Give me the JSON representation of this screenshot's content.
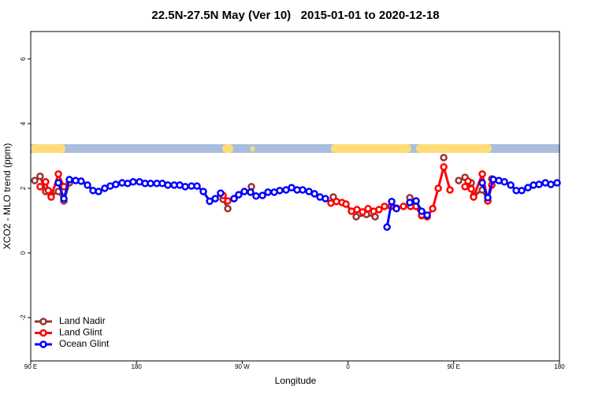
{
  "chart_data": {
    "type": "line",
    "title": "22.5N-27.5N May (Ver 10)   2015-01-01 to 2020-12-18",
    "x_label": "Longitude",
    "y_label": "XCO2 - MLO trend (ppm)",
    "xlim": [
      90,
      540
    ],
    "ylim": [
      -3.34,
      6.85
    ],
    "xticks": [
      {
        "value": 90,
        "label": "90 E"
      },
      {
        "value": 180,
        "label": "180"
      },
      {
        "value": 270,
        "label": "90 W"
      },
      {
        "value": 360,
        "label": "0"
      },
      {
        "value": 450,
        "label": "90 E"
      },
      {
        "value": 540,
        "label": "180"
      }
    ],
    "yticks": [
      -2,
      0,
      2,
      4,
      6
    ],
    "legend": "bottom-left",
    "series": [
      {
        "name": "Land Nadir",
        "color": "#993333",
        "x": [
          93.4,
          98,
          102.7,
          107.4,
          113.5,
          118.2,
          122.9,
          null,
          253.7,
          257.7,
          null,
          277.8,
          null,
          347.5,
          null,
          367,
          375.7,
          383.1,
          null,
          412.6,
          422.7,
          null,
          441.5,
          null,
          454.2,
          459.6,
          464.9,
          466.9,
          474.3,
          479,
          482.4
        ],
        "values": [
          2.24,
          2.37,
          1.9,
          1.78,
          1.9,
          1.61,
          2.17,
          null,
          1.66,
          1.37,
          null,
          2.05,
          null,
          1.73,
          null,
          1.12,
          1.19,
          1.12,
          null,
          1.71,
          1.15,
          null,
          2.95,
          null,
          2.24,
          2.34,
          2.17,
          1.76,
          1.95,
          1.61,
          2.29
        ]
      },
      {
        "name": "Land Glint",
        "color": "#ff0000",
        "x": [
          98,
          102.7,
          105,
          107.4,
          113.5,
          118.2,
          null,
          253.7,
          257.7,
          263,
          null,
          345.5,
          350.2,
          354.9,
          358.3,
          363,
          367.7,
          372.4,
          377.1,
          381.8,
          386.4,
          391.1,
          396.5,
          401.2,
          407.2,
          413.3,
          418,
          422.7,
          427.4,
          432.1,
          436.8,
          441.5,
          446.8,
          null,
          459.6,
          462.2,
          464.9,
          466.9,
          474.3,
          479,
          482.4
        ],
        "values": [
          2.05,
          2.2,
          1.93,
          1.73,
          2.44,
          2.05,
          null,
          1.78,
          1.61,
          1.68,
          null,
          1.54,
          1.59,
          1.56,
          1.51,
          1.29,
          1.34,
          1.27,
          1.37,
          1.29,
          1.34,
          1.44,
          1.44,
          1.39,
          1.44,
          1.44,
          1.44,
          1.17,
          1.12,
          1.37,
          2.0,
          2.66,
          1.95,
          null,
          2.05,
          2.22,
          1.98,
          1.73,
          2.44,
          1.61,
          2.1
        ]
      },
      {
        "name": "Ocean Glint",
        "color": "#0000ff",
        "x": [
          113.5,
          118.2,
          122.9,
          128.2,
          132.9,
          138.3,
          143,
          147.7,
          153,
          157.7,
          162.4,
          167.8,
          172.5,
          177.2,
          182.6,
          187.3,
          192,
          197.3,
          202,
          206.7,
          212.1,
          216.8,
          221.5,
          226.8,
          231.5,
          236.9,
          242.3,
          247,
          251.6,
          null,
          263,
          267,
          271.8,
          277.1,
          281.8,
          287.2,
          291.9,
          297.2,
          301.9,
          307.3,
          312,
          316.7,
          321.4,
          326.8,
          331.5,
          336.2,
          340.8,
          null,
          393.2,
          397.2,
          401.2,
          null,
          412.6,
          418,
          422.7,
          427.4,
          null,
          474.3,
          479,
          483.7,
          488.4,
          493.1,
          498.5,
          503.2,
          507.9,
          513.2,
          517.9,
          522.6,
          528,
          532.7,
          538
        ],
        "values": [
          2.17,
          1.68,
          2.27,
          2.24,
          2.22,
          2.1,
          1.93,
          1.9,
          2.0,
          2.07,
          2.12,
          2.17,
          2.15,
          2.2,
          2.2,
          2.15,
          2.15,
          2.15,
          2.15,
          2.1,
          2.1,
          2.1,
          2.05,
          2.07,
          2.07,
          1.9,
          1.6,
          1.68,
          1.85,
          null,
          1.68,
          1.8,
          1.9,
          1.88,
          1.76,
          1.78,
          1.88,
          1.88,
          1.93,
          1.95,
          2.02,
          1.95,
          1.95,
          1.9,
          1.83,
          1.73,
          1.68,
          null,
          0.8,
          1.59,
          1.37,
          null,
          1.56,
          1.61,
          1.29,
          1.17,
          null,
          2.17,
          1.71,
          2.27,
          2.24,
          2.2,
          2.1,
          1.93,
          1.93,
          2.02,
          2.1,
          2.12,
          2.17,
          2.12,
          2.17
        ]
      }
    ]
  }
}
